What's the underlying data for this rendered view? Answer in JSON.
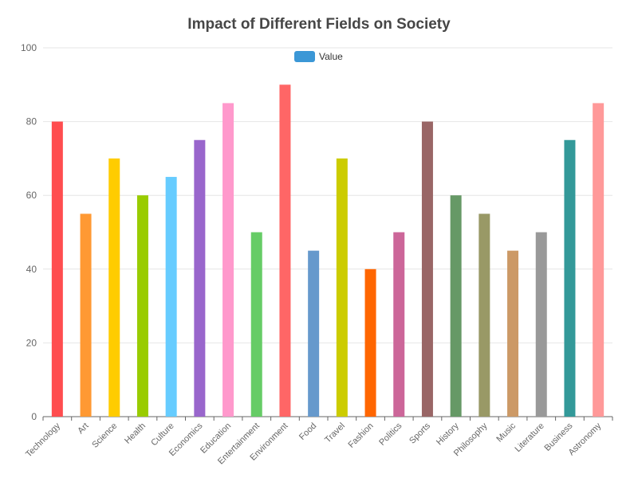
{
  "chart_data": {
    "type": "bar",
    "title": "Impact of Different Fields on Society",
    "xlabel": "",
    "ylabel": "",
    "ylim": [
      0,
      100
    ],
    "yticks": [
      0,
      20,
      40,
      60,
      80,
      100
    ],
    "grid": true,
    "legend_position": "top-center",
    "categories": [
      "Technology",
      "Art",
      "Science",
      "Health",
      "Culture",
      "Economics",
      "Education",
      "Entertainment",
      "Environment",
      "Food",
      "Travel",
      "Fashion",
      "Politics",
      "Sports",
      "History",
      "Philosophy",
      "Music",
      "Literature",
      "Business",
      "Astronomy"
    ],
    "series": [
      {
        "name": "Value",
        "legend_color": "#3b97d6",
        "values": [
          80,
          55,
          70,
          60,
          65,
          75,
          85,
          50,
          90,
          45,
          70,
          40,
          50,
          80,
          60,
          55,
          45,
          50,
          75,
          85
        ]
      }
    ],
    "bar_colors": [
      "#ff4d4f",
      "#ff9933",
      "#ffcc00",
      "#99cc00",
      "#66ccff",
      "#9966cc",
      "#ff99cc",
      "#66cc66",
      "#ff6666",
      "#6699cc",
      "#cccc00",
      "#ff6600",
      "#cc6699",
      "#996666",
      "#669966",
      "#999966",
      "#cc9966",
      "#999999",
      "#339999",
      "#ff9999"
    ]
  }
}
